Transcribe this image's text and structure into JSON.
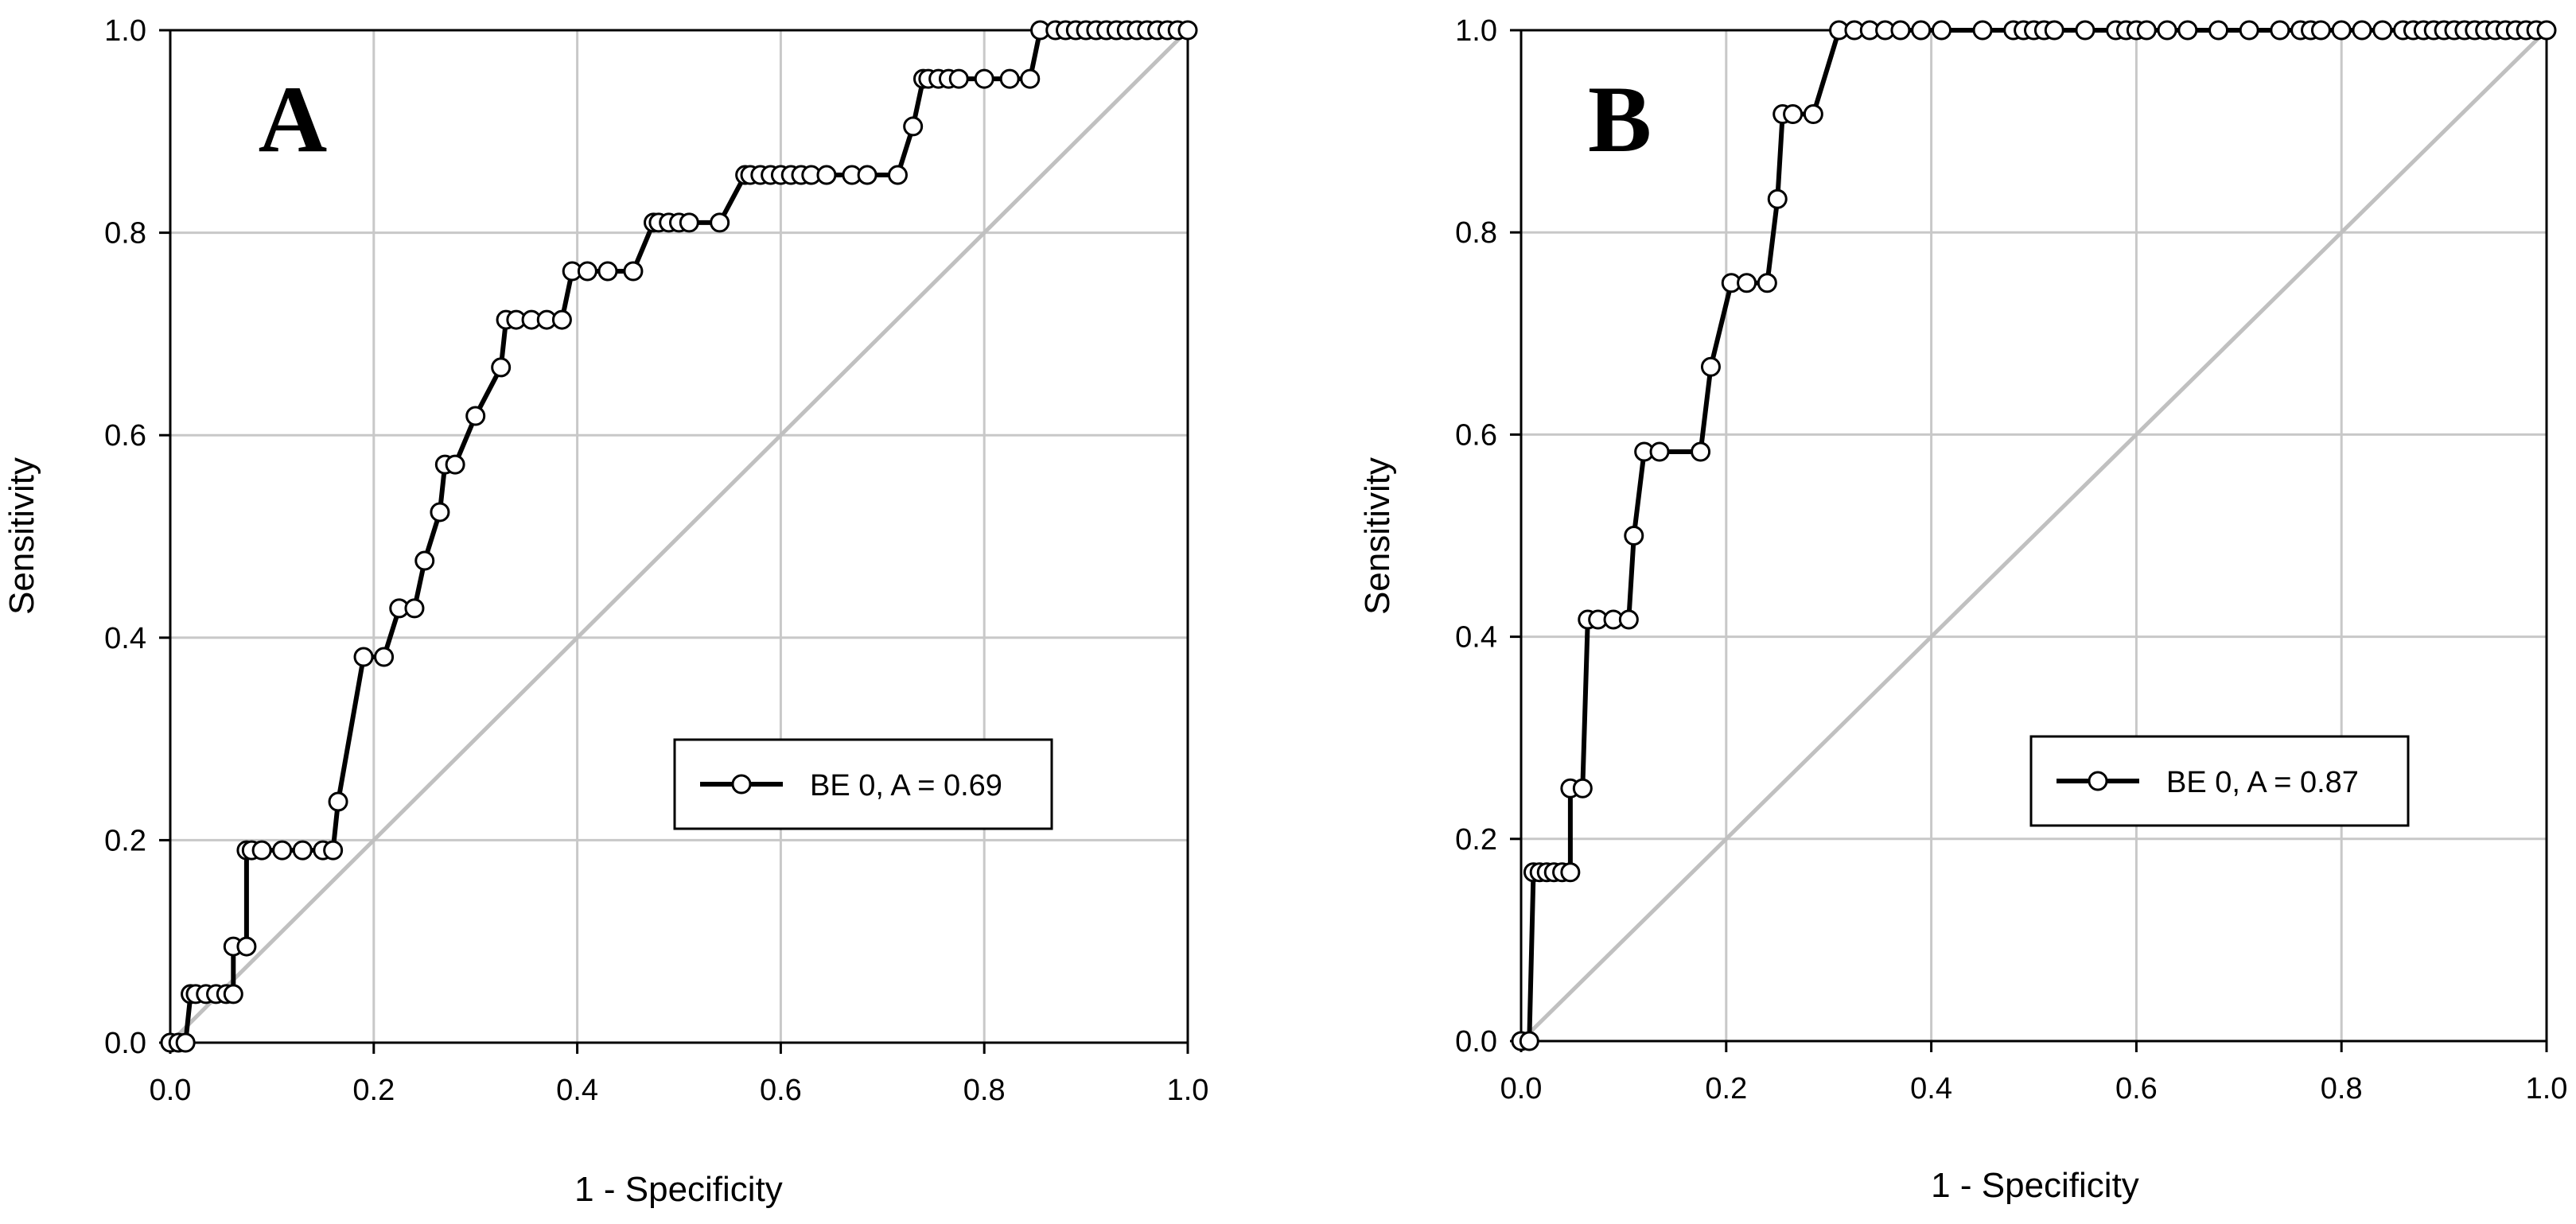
{
  "chart_data": [
    {
      "type": "line",
      "panel_label": "A",
      "xlabel": "1 - Specificity",
      "ylabel": "Sensitivity",
      "xlim": [
        0,
        1
      ],
      "ylim": [
        0,
        1
      ],
      "xticks": [
        "0.0",
        "0.2",
        "0.4",
        "0.6",
        "0.8",
        "1.0"
      ],
      "yticks": [
        "0.0",
        "0.2",
        "0.4",
        "0.6",
        "0.8",
        "1.0"
      ],
      "grid": true,
      "legend_position": "lower-right",
      "reference_line": {
        "x": [
          0,
          1
        ],
        "y": [
          0,
          1
        ],
        "color": "#c0c0c0"
      },
      "series": [
        {
          "name": "BE 0, A = 0.69",
          "color": "#000000",
          "marker": "open-circle",
          "x": [
            0.0,
            0.008,
            0.015,
            0.02,
            0.025,
            0.035,
            0.045,
            0.055,
            0.062,
            0.062,
            0.075,
            0.075,
            0.08,
            0.09,
            0.11,
            0.13,
            0.15,
            0.16,
            0.165,
            0.19,
            0.21,
            0.225,
            0.24,
            0.25,
            0.265,
            0.27,
            0.28,
            0.3,
            0.325,
            0.33,
            0.34,
            0.355,
            0.37,
            0.385,
            0.395,
            0.41,
            0.43,
            0.455,
            0.475,
            0.48,
            0.49,
            0.5,
            0.51,
            0.54,
            0.565,
            0.57,
            0.58,
            0.59,
            0.6,
            0.61,
            0.62,
            0.63,
            0.645,
            0.67,
            0.685,
            0.715,
            0.73,
            0.74,
            0.745,
            0.755,
            0.765,
            0.775,
            0.8,
            0.825,
            0.845,
            0.855,
            0.87,
            0.88,
            0.89,
            0.9,
            0.91,
            0.92,
            0.93,
            0.94,
            0.95,
            0.96,
            0.97,
            0.98,
            0.99,
            1.0
          ],
          "y": [
            0.0,
            0.0,
            0.0,
            0.048,
            0.048,
            0.048,
            0.048,
            0.048,
            0.048,
            0.095,
            0.095,
            0.19,
            0.19,
            0.19,
            0.19,
            0.19,
            0.19,
            0.19,
            0.238,
            0.381,
            0.381,
            0.429,
            0.429,
            0.476,
            0.524,
            0.571,
            0.571,
            0.619,
            0.667,
            0.714,
            0.714,
            0.714,
            0.714,
            0.714,
            0.762,
            0.762,
            0.762,
            0.762,
            0.81,
            0.81,
            0.81,
            0.81,
            0.81,
            0.81,
            0.857,
            0.857,
            0.857,
            0.857,
            0.857,
            0.857,
            0.857,
            0.857,
            0.857,
            0.857,
            0.857,
            0.857,
            0.905,
            0.952,
            0.952,
            0.952,
            0.952,
            0.952,
            0.952,
            0.952,
            0.952,
            1.0,
            1.0,
            1.0,
            1.0,
            1.0,
            1.0,
            1.0,
            1.0,
            1.0,
            1.0,
            1.0,
            1.0,
            1.0,
            1.0,
            1.0
          ]
        }
      ]
    },
    {
      "type": "line",
      "panel_label": "B",
      "xlabel": "1 - Specificity",
      "ylabel": "Sensitivity",
      "xlim": [
        0,
        1
      ],
      "ylim": [
        0,
        1
      ],
      "xticks": [
        "0.0",
        "0.2",
        "0.4",
        "0.6",
        "0.8",
        "1.0"
      ],
      "yticks": [
        "0.0",
        "0.2",
        "0.4",
        "0.6",
        "0.8",
        "1.0"
      ],
      "grid": true,
      "legend_position": "lower-right",
      "reference_line": {
        "x": [
          0,
          1
        ],
        "y": [
          0,
          1
        ],
        "color": "#c0c0c0"
      },
      "series": [
        {
          "name": "BE 0, A = 0.87",
          "color": "#000000",
          "marker": "open-circle",
          "x": [
            0.0,
            0.008,
            0.012,
            0.018,
            0.025,
            0.032,
            0.04,
            0.048,
            0.048,
            0.06,
            0.065,
            0.075,
            0.09,
            0.105,
            0.11,
            0.12,
            0.135,
            0.175,
            0.185,
            0.205,
            0.22,
            0.24,
            0.25,
            0.255,
            0.265,
            0.285,
            0.31,
            0.325,
            0.34,
            0.355,
            0.37,
            0.39,
            0.41,
            0.45,
            0.48,
            0.49,
            0.5,
            0.51,
            0.52,
            0.55,
            0.58,
            0.59,
            0.6,
            0.61,
            0.63,
            0.65,
            0.68,
            0.71,
            0.74,
            0.76,
            0.77,
            0.78,
            0.8,
            0.82,
            0.84,
            0.86,
            0.87,
            0.88,
            0.89,
            0.9,
            0.91,
            0.92,
            0.93,
            0.94,
            0.95,
            0.96,
            0.97,
            0.98,
            0.99,
            1.0
          ],
          "y": [
            0.0,
            0.0,
            0.167,
            0.167,
            0.167,
            0.167,
            0.167,
            0.167,
            0.25,
            0.25,
            0.417,
            0.417,
            0.417,
            0.417,
            0.5,
            0.583,
            0.583,
            0.583,
            0.667,
            0.75,
            0.75,
            0.75,
            0.833,
            0.917,
            0.917,
            0.917,
            1.0,
            1.0,
            1.0,
            1.0,
            1.0,
            1.0,
            1.0,
            1.0,
            1.0,
            1.0,
            1.0,
            1.0,
            1.0,
            1.0,
            1.0,
            1.0,
            1.0,
            1.0,
            1.0,
            1.0,
            1.0,
            1.0,
            1.0,
            1.0,
            1.0,
            1.0,
            1.0,
            1.0,
            1.0,
            1.0,
            1.0,
            1.0,
            1.0,
            1.0,
            1.0,
            1.0,
            1.0,
            1.0,
            1.0,
            1.0,
            1.0,
            1.0,
            1.0,
            1.0
          ]
        }
      ]
    }
  ]
}
